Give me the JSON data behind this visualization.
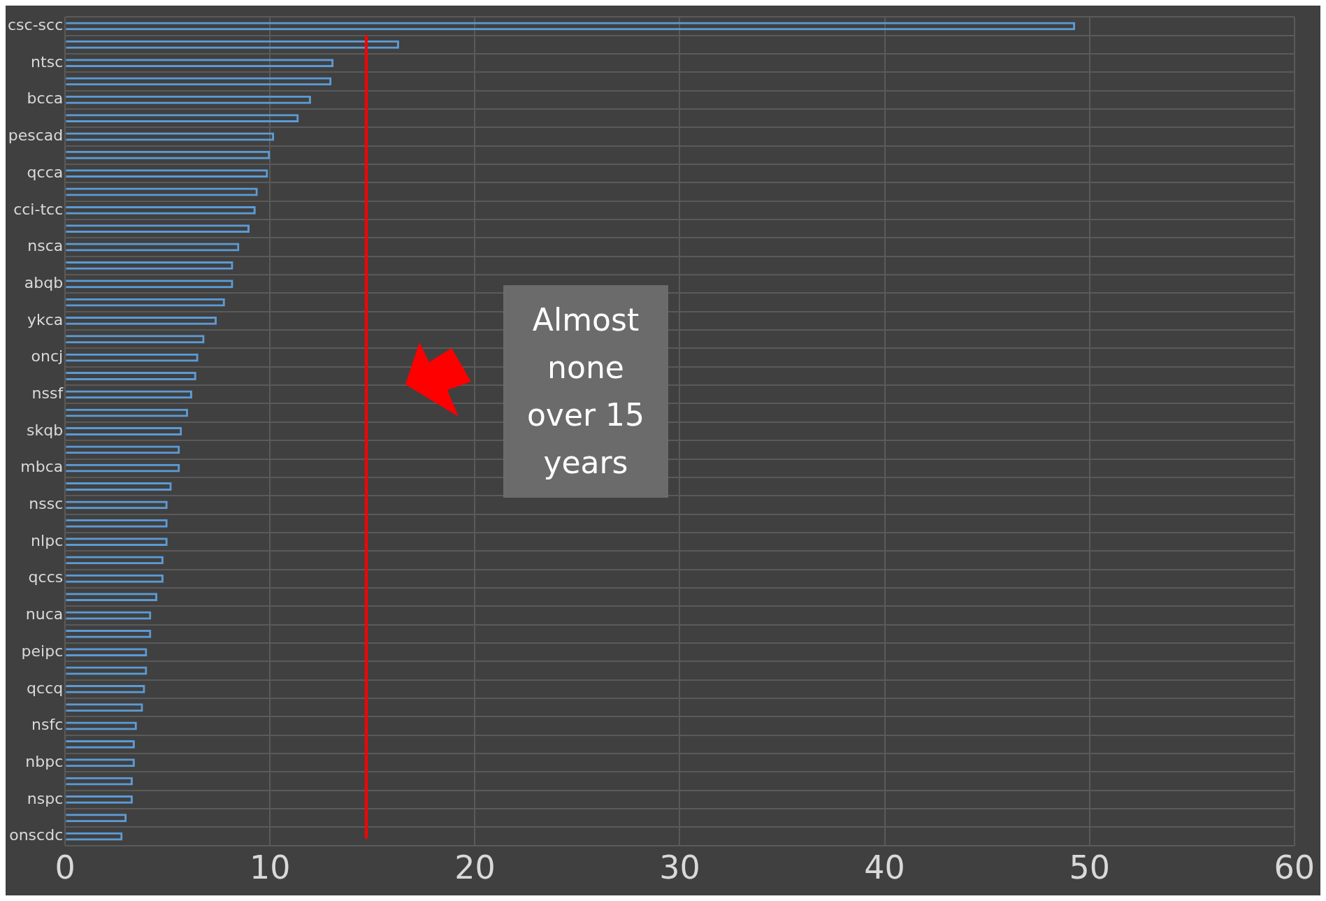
{
  "chart_data": {
    "type": "bar",
    "orientation": "horizontal",
    "categories": [
      "csc-scc",
      null,
      "ntsc",
      null,
      "bcca",
      null,
      "pescad",
      null,
      "qcca",
      null,
      "cci-tcc",
      null,
      "nsca",
      null,
      "abqb",
      null,
      "ykca",
      null,
      "oncj",
      null,
      "nssf",
      null,
      "skqb",
      null,
      "mbca",
      null,
      "nssc",
      null,
      "nlpc",
      null,
      "qccs",
      null,
      "nuca",
      null,
      "peipc",
      null,
      "qccq",
      null,
      "nsfc",
      null,
      "nbpc",
      null,
      "nspc",
      null,
      "onscdc"
    ],
    "values": [
      49.3,
      16.3,
      13.1,
      13.0,
      12.0,
      11.4,
      10.2,
      10.0,
      9.9,
      9.4,
      9.3,
      9.0,
      8.5,
      8.2,
      8.2,
      7.8,
      7.4,
      6.8,
      6.5,
      6.4,
      6.2,
      6.0,
      5.7,
      5.6,
      5.6,
      5.2,
      5.0,
      5.0,
      5.0,
      4.8,
      4.8,
      4.5,
      4.2,
      4.2,
      4.0,
      4.0,
      3.9,
      3.8,
      3.5,
      3.4,
      3.4,
      3.3,
      3.3,
      3.0,
      2.8
    ],
    "color": "#5b9bd5",
    "xlim": [
      0,
      60
    ],
    "xticks": [
      0,
      10,
      20,
      30,
      40,
      50,
      60
    ],
    "grid": true,
    "legend": false,
    "ref_lines": [
      {
        "axis": "x",
        "value": 14.7,
        "color": "#ff0000"
      }
    ],
    "annotations": [
      "Almost none over 15 years"
    ]
  }
}
